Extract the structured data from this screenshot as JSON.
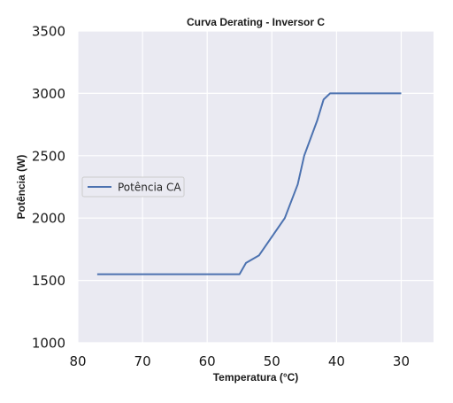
{
  "chart_data": {
    "type": "line",
    "title": "Curva Derating - Inversor C",
    "xlabel": "Temperatura (°C)",
    "ylabel": "Potência (W)",
    "xlim": [
      80,
      25
    ],
    "ylim": [
      1000,
      3500
    ],
    "x_ticks": [
      80,
      70,
      60,
      50,
      40,
      30
    ],
    "y_ticks": [
      1000,
      1500,
      2000,
      2500,
      3000,
      3500
    ],
    "grid": true,
    "legend_position": "center-left",
    "series": [
      {
        "name": "Potência CA",
        "color": "#4c72b0",
        "x": [
          77,
          55,
          54,
          52,
          48,
          46,
          45,
          43,
          42,
          41,
          30
        ],
        "y": [
          1550,
          1550,
          1640,
          1700,
          2000,
          2270,
          2500,
          2780,
          2950,
          3000,
          3000
        ]
      }
    ]
  },
  "style": {
    "plot_background": "#eaeaf2",
    "grid_color": "#ffffff",
    "series_color": "#4c72b0"
  }
}
